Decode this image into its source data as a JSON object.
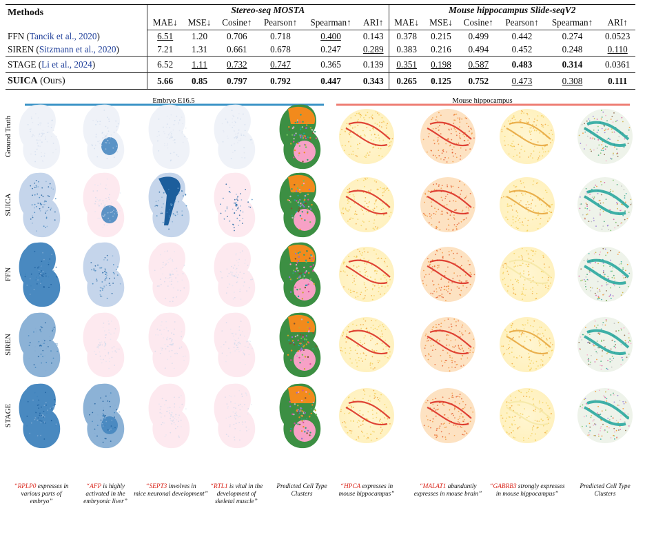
{
  "table": {
    "methods_header": "Methods",
    "groups": [
      "Stereo-seq MOSTA",
      "Mouse hippocampus Slide-seqV2"
    ],
    "metrics": [
      "MAE↓",
      "MSE↓",
      "Cosine↑",
      "Pearson↑",
      "Spearman↑",
      "ARI↑"
    ],
    "rows": [
      {
        "name": "FFN",
        "cite": "Tancik et al., 2020",
        "cells": [
          {
            "v": "6.51",
            "s": "u"
          },
          {
            "v": "1.20"
          },
          {
            "v": "0.706"
          },
          {
            "v": "0.718"
          },
          {
            "v": "0.400",
            "s": "u"
          },
          {
            "v": "0.143"
          },
          {
            "v": "0.378"
          },
          {
            "v": "0.215"
          },
          {
            "v": "0.499"
          },
          {
            "v": "0.442"
          },
          {
            "v": "0.274"
          },
          {
            "v": "0.0523"
          }
        ]
      },
      {
        "name": "SIREN",
        "cite": "Sitzmann et al., 2020",
        "cells": [
          {
            "v": "7.21"
          },
          {
            "v": "1.31"
          },
          {
            "v": "0.661"
          },
          {
            "v": "0.678"
          },
          {
            "v": "0.247"
          },
          {
            "v": "0.289",
            "s": "u"
          },
          {
            "v": "0.383"
          },
          {
            "v": "0.216"
          },
          {
            "v": "0.494"
          },
          {
            "v": "0.452"
          },
          {
            "v": "0.248"
          },
          {
            "v": "0.110",
            "s": "u"
          }
        ]
      },
      {
        "name": "STAGE",
        "cite": "Li et al., 2024",
        "cells": [
          {
            "v": "6.52"
          },
          {
            "v": "1.11",
            "s": "u"
          },
          {
            "v": "0.732",
            "s": "u"
          },
          {
            "v": "0.747",
            "s": "u"
          },
          {
            "v": "0.365"
          },
          {
            "v": "0.139"
          },
          {
            "v": "0.351",
            "s": "u"
          },
          {
            "v": "0.198",
            "s": "u"
          },
          {
            "v": "0.587",
            "s": "u"
          },
          {
            "v": "0.483",
            "s": "b"
          },
          {
            "v": "0.314",
            "s": "b"
          },
          {
            "v": "0.0361"
          }
        ]
      },
      {
        "name": "SUICA",
        "suffix": "(Ours)",
        "cells": [
          {
            "v": "5.66",
            "s": "b"
          },
          {
            "v": "0.85",
            "s": "b"
          },
          {
            "v": "0.797",
            "s": "b"
          },
          {
            "v": "0.792",
            "s": "b"
          },
          {
            "v": "0.447",
            "s": "b"
          },
          {
            "v": "0.343",
            "s": "b"
          },
          {
            "v": "0.265",
            "s": "b"
          },
          {
            "v": "0.125",
            "s": "b"
          },
          {
            "v": "0.752",
            "s": "b"
          },
          {
            "v": "0.473",
            "s": "u"
          },
          {
            "v": "0.308",
            "s": "u"
          },
          {
            "v": "0.111",
            "s": "b"
          }
        ]
      }
    ]
  },
  "figure": {
    "sections": [
      {
        "label": "Embryo E16.5",
        "color": "#3a93c6"
      },
      {
        "label": "Mouse hippocampus",
        "color": "#ee7d73"
      }
    ],
    "row_labels": [
      "Ground Truth",
      "SUICA",
      "FFN",
      "SIREN",
      "STAGE"
    ],
    "captions": [
      {
        "gene": "RPLP0",
        "lines": [
          "“RPLP0 expresses in",
          "various parts of",
          "embryo”"
        ]
      },
      {
        "gene": "AFP",
        "lines": [
          "“AFP is highly",
          "activated in the",
          "embryonic liver”"
        ]
      },
      {
        "gene": "SEPT3",
        "lines": [
          "“SEPT3 involves in",
          "mice neuronal development”"
        ]
      },
      {
        "gene": "RTL1",
        "lines": [
          "“RTL1 is vital in the",
          "development of",
          "skeletal muscle”"
        ]
      },
      {
        "gene": "",
        "lines": [
          "Predicted Cell Type",
          "Clusters"
        ]
      },
      {
        "gene": "HPCA",
        "lines": [
          "“HPCA expresses in",
          "mouse hippocampus”"
        ]
      },
      {
        "gene": "MALAT1",
        "lines": [
          "“MALAT1 abundantly",
          "expresses in mouse brain”"
        ]
      },
      {
        "gene": "GABRB3",
        "lines": [
          "“GABRB3 strongly expresses",
          "in mouse hippocampus”"
        ]
      },
      {
        "gene": "",
        "lines": [
          "Predicted Cell Type",
          "Clusters"
        ]
      }
    ],
    "colors": {
      "gene_red": "#d9261c",
      "gene_blue": "#1c5e9c",
      "embryo_tint": "#fde8ee"
    }
  }
}
